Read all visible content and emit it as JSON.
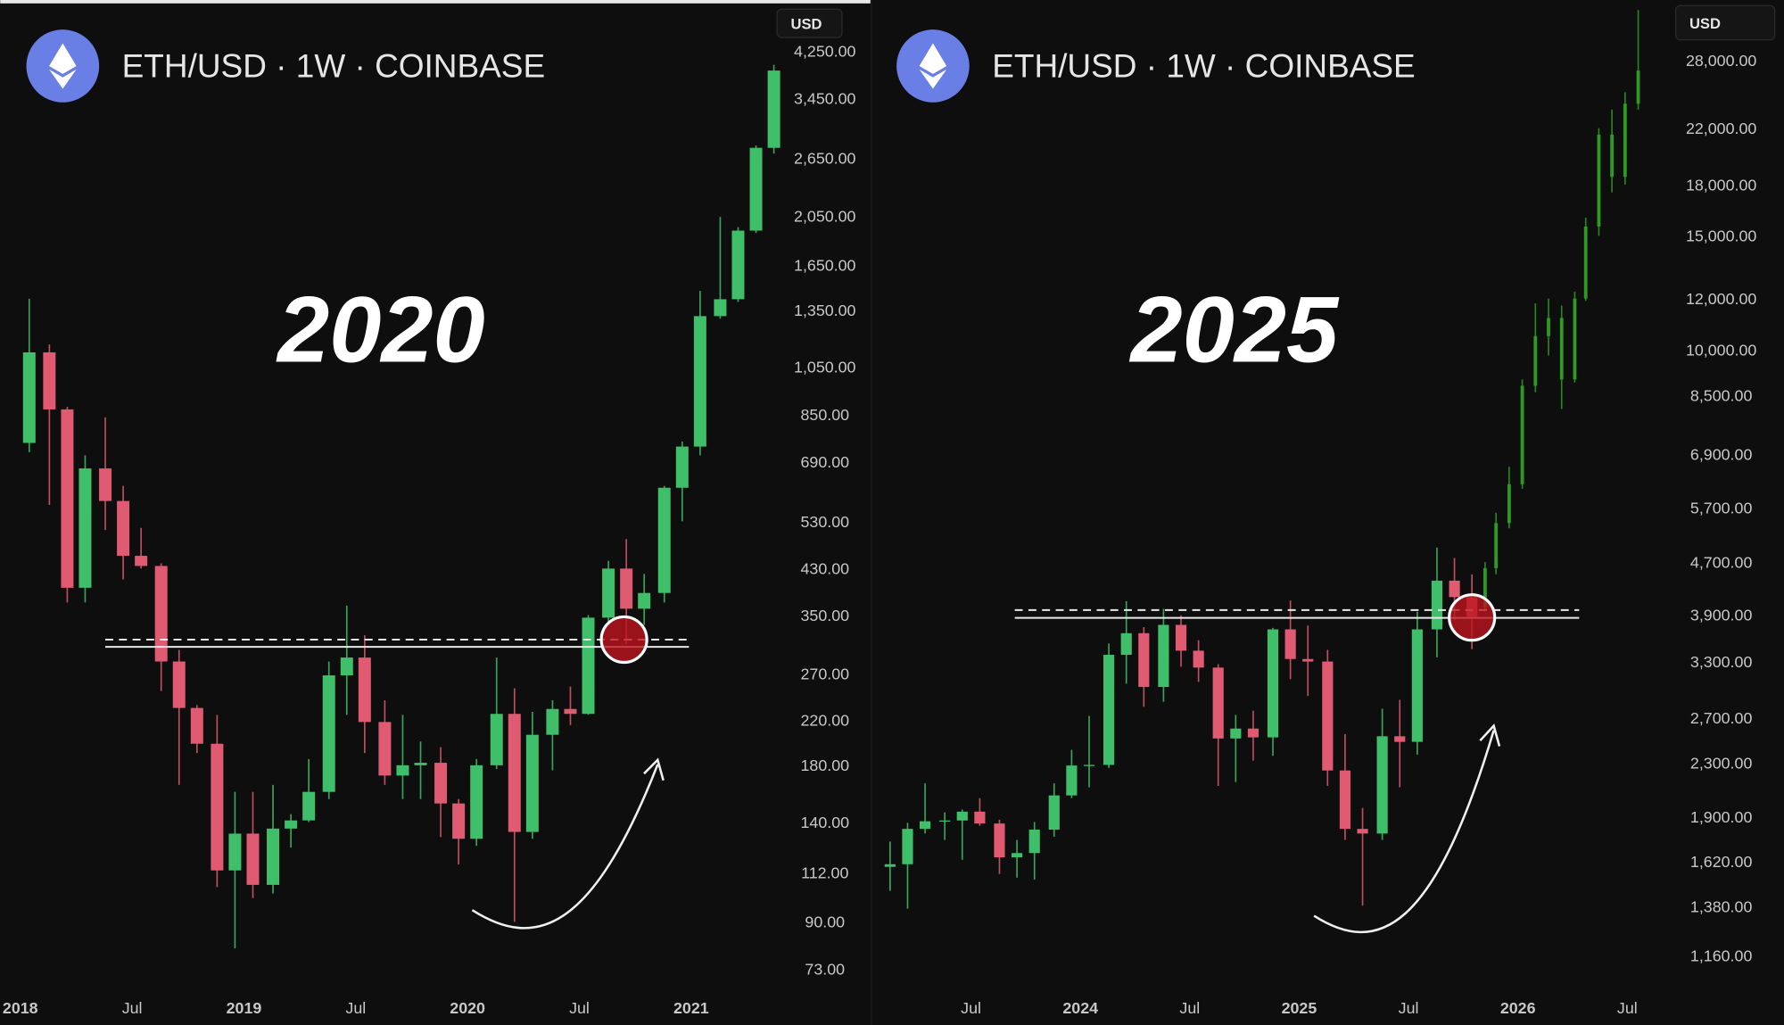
{
  "chart_data": [
    {
      "type": "candlestick",
      "title": "ETH/USD · 1W · COINBASE",
      "currency": "USD",
      "annotation": "2020",
      "log_scale": true,
      "xlim": [
        2017.91,
        2021.42
      ],
      "ylim": [
        57,
        5330
      ],
      "xticks": [
        2018,
        {
          "value": 2018.5,
          "label": "Jul"
        },
        2019,
        {
          "value": 2019.5,
          "label": "Jul"
        },
        2020,
        {
          "value": 2020.5,
          "label": "Jul"
        },
        2021
      ],
      "yticks": [
        {
          "value": 4250,
          "label": "4,250.00"
        },
        {
          "value": 3450,
          "label": "3,450.00"
        },
        {
          "value": 2650,
          "label": "2,650.00"
        },
        {
          "value": 2050,
          "label": "2,050.00"
        },
        {
          "value": 1650,
          "label": "1,650.00"
        },
        {
          "value": 1350,
          "label": "1,350.00"
        },
        {
          "value": 1050,
          "label": "1,050.00"
        },
        {
          "value": 850,
          "label": "850.00"
        },
        {
          "value": 690,
          "label": "690.00"
        },
        {
          "value": 530,
          "label": "530.00"
        },
        {
          "value": 430,
          "label": "430.00"
        },
        {
          "value": 350,
          "label": "350.00"
        },
        {
          "value": 270,
          "label": "270.00"
        },
        {
          "value": 220,
          "label": "220.00"
        },
        {
          "value": 180,
          "label": "180.00"
        },
        {
          "value": 140,
          "label": "140.00"
        },
        {
          "value": 112,
          "label": "112.00"
        },
        {
          "value": 90,
          "label": "90.00"
        },
        {
          "value": 73,
          "label": "73.00"
        }
      ],
      "levels": [
        {
          "value": 304,
          "style": "solid"
        },
        {
          "value": 314,
          "style": "dashed"
        }
      ],
      "level_x": [
        2018.38,
        2020.99
      ],
      "marker": {
        "x": 2020.7,
        "y": 314
      },
      "series": [
        {
          "up_color": "#3fbf6a",
          "down_color": "#e05a72",
          "x": [
            2018.04,
            2018.13,
            2018.21,
            2018.29,
            2018.38,
            2018.46,
            2018.54,
            2018.63,
            2018.71,
            2018.79,
            2018.88,
            2018.96,
            2019.04,
            2019.13,
            2019.21,
            2019.29,
            2019.38,
            2019.46,
            2019.54,
            2019.63,
            2019.71,
            2019.79,
            2019.88,
            2019.96,
            2020.04,
            2020.13,
            2020.21,
            2020.29,
            2020.38,
            2020.46,
            2020.54,
            2020.63,
            2020.71,
            2020.79,
            2020.88,
            2020.96,
            2021.04,
            2021.13,
            2021.21,
            2021.29,
            2021.37
          ],
          "open": [
            750,
            1120,
            870,
            395,
            670,
            580,
            455,
            435,
            285,
            232,
            198,
            113,
            133,
            106,
            136,
            141,
            160,
            268,
            290,
            218,
            172,
            180,
            182,
            152,
            130,
            180,
            226,
            134,
            206,
            231,
            226,
            346,
            430,
            360,
            386,
            615,
            738,
            1315,
            1417,
            1920,
            2770
          ],
          "high": [
            1420,
            1160,
            880,
            710,
            840,
            620,
            515,
            440,
            300,
            235,
            225,
            160,
            160,
            165,
            145,
            185,
            285,
            365,
            320,
            240,
            225,
            200,
            195,
            155,
            185,
            290,
            253,
            228,
            240,
            255,
            350,
            445,
            490,
            420,
            620,
            755,
            1470,
            2040,
            1950,
            2800,
            4000
          ],
          "low": [
            720,
            570,
            370,
            370,
            510,
            410,
            430,
            250,
            165,
            190,
            105,
            80,
            100,
            102,
            125,
            140,
            155,
            225,
            190,
            165,
            155,
            155,
            131,
            116,
            126,
            177,
            90,
            130,
            176,
            215,
            225,
            335,
            308,
            335,
            370,
            530,
            710,
            1300,
            1400,
            1900,
            2700
          ],
          "close": [
            1120,
            870,
            395,
            670,
            580,
            455,
            435,
            285,
            232,
            198,
            113,
            133,
            106,
            136,
            141,
            160,
            268,
            290,
            218,
            172,
            180,
            182,
            152,
            130,
            180,
            226,
            134,
            206,
            231,
            226,
            346,
            430,
            360,
            386,
            615,
            738,
            1315,
            1417,
            1920,
            2770,
            3900
          ]
        }
      ]
    },
    {
      "type": "candlestick",
      "title": "ETH/USD · 1W · COINBASE",
      "currency": "USD",
      "annotation": "2025",
      "log_scale": true,
      "xlim": [
        2023.04,
        2026.68
      ],
      "ylim": [
        906,
        34700
      ],
      "xticks": [
        {
          "value": 2023.5,
          "label": "Jul"
        },
        2024,
        {
          "value": 2024.5,
          "label": "Jul"
        },
        2025,
        {
          "value": 2025.5,
          "label": "Jul"
        },
        2026,
        {
          "value": 2026.5,
          "label": "Jul"
        }
      ],
      "yticks": [
        {
          "value": 28000,
          "label": "28,000.00"
        },
        {
          "value": 22000,
          "label": "22,000.00"
        },
        {
          "value": 18000,
          "label": "18,000.00"
        },
        {
          "value": 15000,
          "label": "15,000.00"
        },
        {
          "value": 12000,
          "label": "12,000.00"
        },
        {
          "value": 10000,
          "label": "10,000.00"
        },
        {
          "value": 8500,
          "label": "8,500.00"
        },
        {
          "value": 6900,
          "label": "6,900.00"
        },
        {
          "value": 5700,
          "label": "5,700.00"
        },
        {
          "value": 4700,
          "label": "4,700.00"
        },
        {
          "value": 3900,
          "label": "3,900.00"
        },
        {
          "value": 3300,
          "label": "3,300.00"
        },
        {
          "value": 2700,
          "label": "2,700.00"
        },
        {
          "value": 2300,
          "label": "2,300.00"
        },
        {
          "value": 1900,
          "label": "1,900.00"
        },
        {
          "value": 1620,
          "label": "1,620.00"
        },
        {
          "value": 1380,
          "label": "1,380.00"
        },
        {
          "value": 1160,
          "label": "1,160.00"
        }
      ],
      "levels": [
        {
          "value": 3854,
          "style": "solid"
        },
        {
          "value": 3963,
          "style": "dashed"
        }
      ],
      "level_x": [
        2023.7,
        2026.28
      ],
      "marker": {
        "x": 2025.79,
        "y": 3860
      },
      "series": [
        {
          "up_color": "#3fbf6a",
          "down_color": "#e05a72",
          "x": [
            2023.13,
            2023.21,
            2023.29,
            2023.38,
            2023.46,
            2023.54,
            2023.63,
            2023.71,
            2023.79,
            2023.88,
            2023.96,
            2024.04,
            2024.13,
            2024.21,
            2024.29,
            2024.38,
            2024.46,
            2024.54,
            2024.63,
            2024.71,
            2024.79,
            2024.88,
            2024.96,
            2025.04,
            2025.13,
            2025.21,
            2025.29,
            2025.38,
            2025.46,
            2025.54,
            2025.63,
            2025.71,
            2025.79
          ],
          "open": [
            1590,
            1605,
            1820,
            1870,
            1875,
            1935,
            1855,
            1645,
            1670,
            1815,
            2050,
            2280,
            2285,
            3380,
            3650,
            3015,
            3760,
            3430,
            3230,
            2510,
            2600,
            2520,
            3700,
            3330,
            3300,
            2240,
            1820,
            1790,
            2530,
            2480,
            3700,
            4400,
            4150
          ],
          "high": [
            1740,
            1860,
            2140,
            1930,
            1950,
            2030,
            1880,
            1750,
            1865,
            2140,
            2410,
            2720,
            3520,
            4090,
            3730,
            3980,
            3890,
            3560,
            3270,
            2730,
            2770,
            3720,
            4100,
            3750,
            3440,
            2550,
            1960,
            2790,
            2880,
            3940,
            4950,
            4770,
            4500
          ],
          "low": [
            1460,
            1370,
            1790,
            1750,
            1630,
            1840,
            1550,
            1530,
            1520,
            1770,
            2030,
            2110,
            2260,
            3050,
            2810,
            2860,
            3240,
            3070,
            2120,
            2150,
            2320,
            2360,
            3100,
            2920,
            2120,
            1750,
            1385,
            1750,
            2110,
            2370,
            3350,
            3820,
            3450
          ],
          "close": [
            1605,
            1820,
            1870,
            1875,
            1935,
            1855,
            1645,
            1670,
            1815,
            2050,
            2280,
            2285,
            3380,
            3650,
            3015,
            3760,
            3430,
            3230,
            2510,
            2600,
            2520,
            3700,
            3330,
            3300,
            2240,
            1820,
            1790,
            2530,
            2480,
            3700,
            4400,
            4150,
            3870
          ]
        },
        {
          "color": "#2f9a22",
          "x": [
            2025.85,
            2025.9,
            2025.96,
            2026.02,
            2026.08,
            2026.14,
            2026.2,
            2026.26,
            2026.31,
            2026.37,
            2026.43,
            2026.49,
            2026.55
          ],
          "open": [
            4000,
            4600,
            5400,
            6200,
            8800,
            10500,
            11200,
            9000,
            12000,
            15500,
            21500,
            18500,
            24000
          ],
          "high": [
            4700,
            5600,
            6600,
            9000,
            11800,
            12000,
            11700,
            12300,
            16000,
            22000,
            23500,
            25000,
            33500
          ],
          "low": [
            3950,
            4500,
            5300,
            6100,
            8600,
            9800,
            8100,
            8900,
            11900,
            15000,
            17500,
            18000,
            23500
          ],
          "close": [
            4600,
            5400,
            6200,
            8800,
            10500,
            11200,
            9000,
            12000,
            15500,
            21500,
            18500,
            24000,
            27000
          ]
        }
      ]
    }
  ]
}
